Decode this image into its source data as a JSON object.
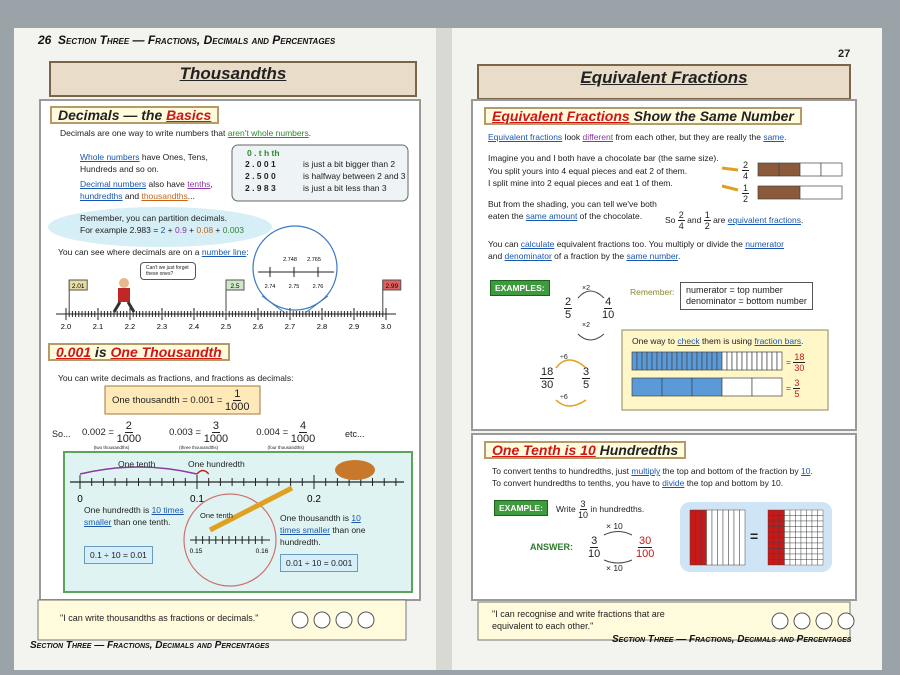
{
  "left": {
    "page_number": "26",
    "running_head": "Section Three — Fractions, Decimals and Percentages",
    "title": "Thousandths",
    "basics": {
      "heading": [
        "Decimals — the ",
        "Basics"
      ],
      "intro": [
        "Decimals are one way to write numbers that ",
        "aren't whole numbers",
        "."
      ],
      "whole": [
        "Whole numbers",
        " have Ones, Tens, Hundreds and so on."
      ],
      "decimal": [
        "Decimal numbers",
        " also have ",
        "tenths",
        ", ",
        "hundredths",
        " and ",
        "thousandths",
        "..."
      ],
      "place_header": "0 . t h th",
      "place_rows": [
        {
          "number": "2 . 0 0 1",
          "text": "is just a bit bigger than 2"
        },
        {
          "number": "2 . 5 0 0",
          "text": "is halfway between 2 and 3"
        },
        {
          "number": "2 . 9 8 3",
          "text": "is just a bit less than 3"
        }
      ],
      "remember": [
        "Remember, you can partition decimals.",
        "For example 2.983 = ",
        "2",
        " + ",
        "0.9",
        " + ",
        "0.08",
        " + ",
        "0.003"
      ],
      "number_line_intro": [
        "You can see where decimals are on a ",
        "number line",
        ":"
      ],
      "speech": "Can't we just forget these ones?",
      "flags": [
        "2.01",
        "2.5",
        "2.99"
      ],
      "line_labels": [
        "2.0",
        "2.1",
        "2.2",
        "2.3",
        "2.4",
        "2.5",
        "2.6",
        "2.7",
        "2.8",
        "2.9",
        "3.0"
      ],
      "zoom_top": [
        "2.748",
        "2.765"
      ],
      "zoom_labels": [
        "2.74",
        "2.75",
        "2.76"
      ]
    },
    "thousandth": {
      "heading": [
        "0.001",
        " is ",
        "One Thousandth"
      ],
      "intro": "You can write decimals as fractions, and fractions as decimals:",
      "definition": {
        "text": "One thousandth = 0.001 =",
        "fraction": {
          "num": "1",
          "den": "1000"
        }
      },
      "so": "So...",
      "examples": [
        {
          "decimal": "0.002 =",
          "fraction": {
            "num": "2",
            "den": "1000"
          },
          "note": "(two thousandths)"
        },
        {
          "decimal": "0.003 =",
          "fraction": {
            "num": "3",
            "den": "1000"
          },
          "note": "(three thousandths)"
        },
        {
          "decimal": "0.004 =",
          "fraction": {
            "num": "4",
            "den": "1000"
          },
          "note": "(four thousandths)"
        }
      ],
      "etc": "etc...",
      "diagram": {
        "one_tenth": "One tenth",
        "one_hundredth": "One hundredth",
        "axis": [
          "0",
          "0.1",
          "0.2"
        ],
        "hundredth_text": [
          "One hundredth is ",
          "10 times smaller",
          " than one tenth."
        ],
        "hundredth_sum": "0.1 ÷ 10 = 0.01",
        "zoom_label": "One tenth",
        "zoom_axis": [
          "0.15",
          "0.16"
        ],
        "thousandth_text": [
          "One thousandth is ",
          "10 times smaller",
          " than one hundredth."
        ],
        "thousandth_sum": "0.01 ÷ 10 = 0.001"
      }
    },
    "quote": "\"I can write thousandths as fractions or decimals.\"",
    "footer": "Section Three — Fractions, Decimals and Percentages"
  },
  "right": {
    "page_number": "27",
    "title": "Equivalent Fractions",
    "same": {
      "heading": [
        "Equivalent Fractions",
        " Show the Same Number"
      ],
      "intro": [
        "Equivalent fractions",
        " look ",
        "different",
        " from each other, but they are really the ",
        "same",
        "."
      ],
      "imagine": "Imagine you and I both have a chocolate bar (the same size).",
      "yours": {
        "text": "You split yours into 4 equal pieces and eat 2 of them.",
        "fraction": {
          "num": "2",
          "den": "4"
        }
      },
      "mine": {
        "text": "I split mine into 2 equal pieces and eat 1 of them.",
        "fraction": {
          "num": "1",
          "den": "2"
        }
      },
      "shading": [
        "But from the shading, you can tell we've both eaten the ",
        "same amount",
        " of the chocolate."
      ],
      "so": [
        "So ",
        {
          "num": "2",
          "den": "4"
        },
        " and ",
        {
          "num": "1",
          "den": "2"
        },
        " are ",
        "equivalent fractions",
        "."
      ],
      "calculate": [
        "You can ",
        "calculate",
        " equivalent fractions too.  You multiply or divide the ",
        "numerator",
        " and ",
        "denominator",
        " of a fraction by the ",
        "same number",
        "."
      ],
      "examples_label": "EXAMPLES:",
      "multiply": {
        "from": {
          "num": "2",
          "den": "5"
        },
        "to": {
          "num": "4",
          "den": "10"
        },
        "op": "×2"
      },
      "divide": {
        "from": {
          "num": "18",
          "den": "30"
        },
        "to": {
          "num": "3",
          "den": "5"
        },
        "op": "÷6"
      },
      "remember": "Remember:",
      "remember_lines": [
        "numerator = top number",
        "denominator = bottom number"
      ],
      "check": [
        "One way to ",
        "check",
        " them is using ",
        "fraction bars",
        "."
      ],
      "bars": [
        {
          "num": "18",
          "den": "30"
        },
        {
          "num": "3",
          "den": "5"
        }
      ],
      "equals": "="
    },
    "tenth": {
      "heading": [
        "One Tenth is ",
        "10",
        " Hundredths"
      ],
      "to_hundredths": [
        "To convert tenths to hundredths, just ",
        "multiply",
        " the top and bottom of the fraction by ",
        "10",
        "."
      ],
      "to_tenths": [
        "To convert hundredths to tenths, you have to ",
        "divide",
        " the top and bottom by 10."
      ],
      "example_label": "EXAMPLE:",
      "example": [
        "Write ",
        {
          "num": "3",
          "den": "10"
        },
        " in hundredths."
      ],
      "answer_label": "ANSWER:",
      "answer": {
        "from": {
          "num": "3",
          "den": "10"
        },
        "to": {
          "num": "30",
          "den": "100"
        },
        "op": "× 10"
      },
      "equals": "="
    },
    "quote": "\"I can recognise and write fractions that are equivalent to each other.\"",
    "footer": "Section Three — Fractions, Decimals and Percentages"
  }
}
